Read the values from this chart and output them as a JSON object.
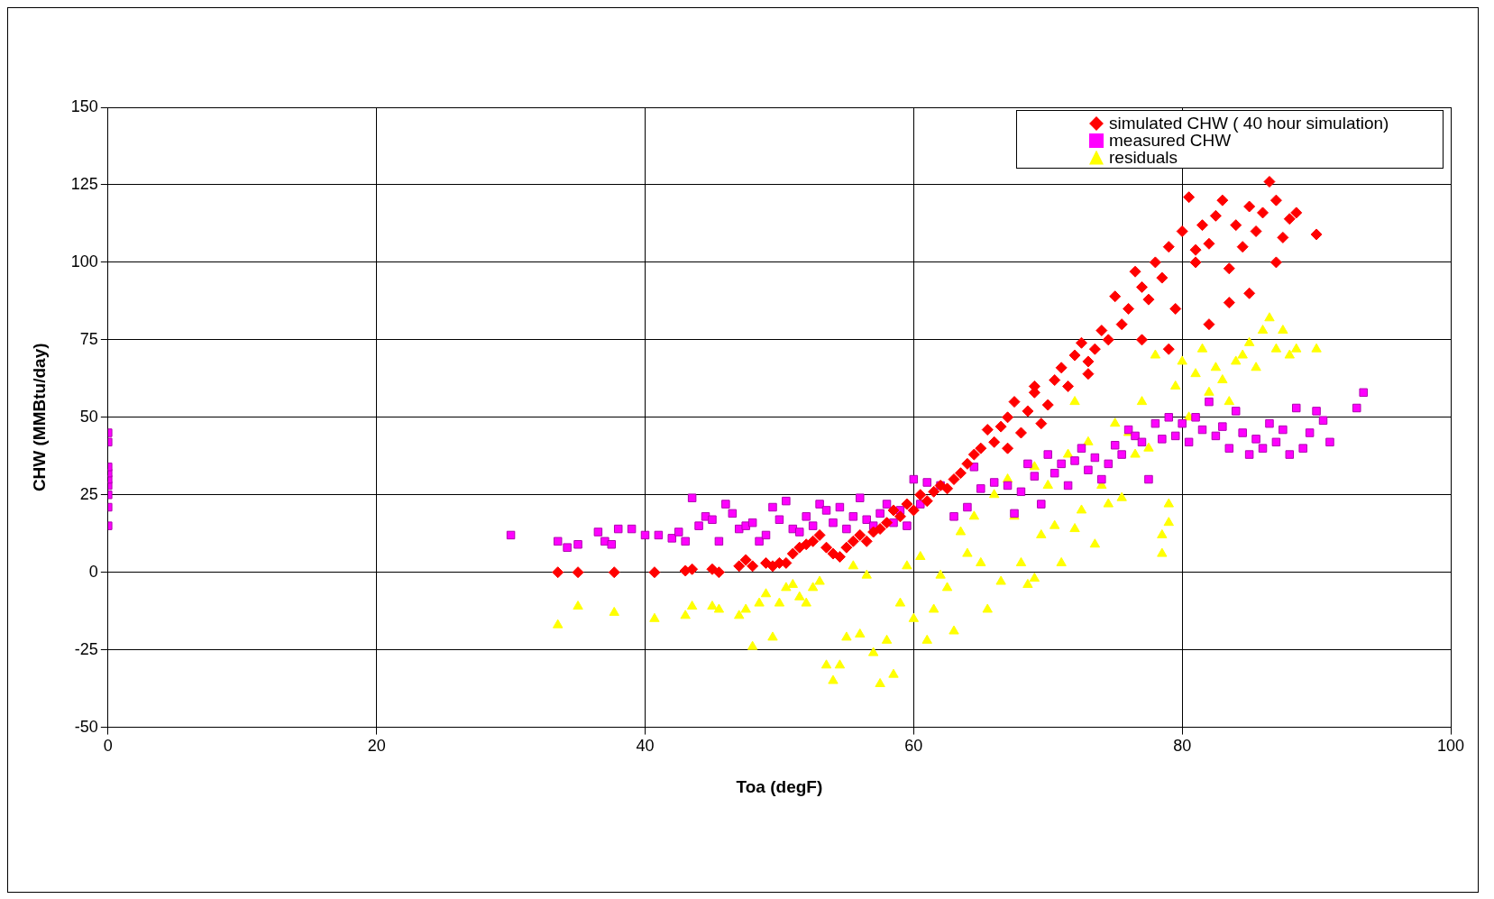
{
  "chart_data": {
    "type": "scatter",
    "xlabel": "Toa (degF)",
    "ylabel": "CHW (MMBtu/day)",
    "xlim": [
      0,
      100
    ],
    "xticks": [
      0,
      20,
      40,
      60,
      80,
      100
    ],
    "ylim": [
      -50,
      150
    ],
    "yticks": [
      -50,
      -25,
      0,
      25,
      50,
      75,
      100,
      125,
      150
    ],
    "grid": true,
    "legend": "top right",
    "series": [
      {
        "name": "simulated CHW ( 40 hour simulation)",
        "color": "#ff0000",
        "marker": "diamond",
        "x": [
          33.5,
          35,
          37.7,
          40.7,
          43,
          43.5,
          45,
          45.5,
          47,
          47.5,
          48,
          49,
          49.5,
          50,
          50.5,
          51,
          51.5,
          52,
          52.5,
          53,
          53.5,
          54,
          54.5,
          55,
          55.5,
          56,
          56.5,
          57,
          57.5,
          58,
          58.5,
          59,
          59.5,
          60,
          60.5,
          61,
          61.5,
          62,
          62.5,
          63,
          63.5,
          64,
          64.5,
          65,
          65.5,
          66,
          66.5,
          67,
          67.5,
          68,
          68.5,
          69,
          69.5,
          70,
          70.5,
          71,
          71.5,
          72,
          72.5,
          73,
          73.5,
          74,
          74.5,
          75,
          75.5,
          76,
          76.5,
          77,
          77.5,
          78,
          78.5,
          79,
          79.5,
          80,
          80.5,
          81,
          81.5,
          82,
          82.5,
          83,
          83.5,
          84,
          84.5,
          85,
          85.5,
          86,
          86.5,
          87,
          87.5,
          88,
          88.5,
          90,
          81,
          79,
          82,
          83.5,
          77,
          73,
          69,
          67,
          85,
          87
        ],
        "values": [
          0,
          0,
          0,
          0,
          0.5,
          1,
          1,
          0,
          2,
          4,
          2,
          3,
          2,
          3,
          3,
          6,
          8,
          9,
          10,
          12,
          8,
          6,
          5,
          8,
          10,
          12,
          10,
          13,
          14,
          16,
          20,
          18,
          22,
          20,
          25,
          23,
          26,
          28,
          27,
          30,
          32,
          35,
          38,
          40,
          46,
          42,
          47,
          50,
          55,
          45,
          52,
          58,
          48,
          54,
          62,
          66,
          60,
          70,
          74,
          68,
          72,
          78,
          75,
          89,
          80,
          85,
          97,
          92,
          88,
          100,
          95,
          105,
          85,
          110,
          121,
          104,
          112,
          106,
          115,
          120,
          98,
          112,
          105,
          118,
          110,
          116,
          126,
          120,
          108,
          114,
          116,
          109,
          100,
          72,
          80,
          87,
          75,
          64,
          60,
          40,
          90,
          100
        ]
      },
      {
        "name": "measured CHW",
        "color": "#ff00ff",
        "marker": "square",
        "x": [
          0,
          0,
          0,
          0,
          0,
          0,
          0,
          0,
          0,
          30,
          33.5,
          34.2,
          35,
          36.5,
          37,
          37.5,
          38,
          39,
          40,
          41,
          42,
          42.5,
          43,
          43.5,
          44,
          44.5,
          45,
          45.5,
          46,
          46.5,
          47,
          47.5,
          48,
          48.5,
          49,
          49.5,
          50,
          50.5,
          51,
          51.5,
          52,
          52.5,
          53,
          53.5,
          54,
          54.5,
          55,
          55.5,
          56,
          56.5,
          57,
          57.5,
          58,
          58.5,
          59,
          59.5,
          60,
          60.5,
          61,
          62,
          63,
          64,
          64.5,
          65,
          66,
          67,
          67.5,
          68,
          68.5,
          69,
          69.5,
          70,
          70.5,
          71,
          71.5,
          72,
          72.5,
          73,
          73.5,
          74,
          74.5,
          75,
          75.5,
          76,
          76.5,
          77,
          77.5,
          78,
          78.5,
          79,
          79.5,
          80,
          80.5,
          81,
          81.5,
          82,
          82.5,
          83,
          83.5,
          84,
          84.5,
          85,
          85.5,
          86,
          86.5,
          87,
          87.5,
          88,
          88.5,
          89,
          89.5,
          90,
          90.5,
          91,
          93,
          93.5
        ],
        "values": [
          15,
          21,
          25,
          28,
          30,
          32,
          34,
          42,
          45,
          12,
          10,
          8,
          9,
          13,
          10,
          9,
          14,
          14,
          12,
          12,
          11,
          13,
          10,
          24,
          15,
          18,
          17,
          10,
          22,
          19,
          14,
          15,
          16,
          10,
          12,
          21,
          17,
          23,
          14,
          13,
          18,
          15,
          22,
          20,
          16,
          21,
          14,
          18,
          24,
          17,
          15,
          19,
          22,
          16,
          20,
          15,
          30,
          22,
          29,
          28,
          18,
          21,
          34,
          27,
          29,
          28,
          19,
          26,
          35,
          31,
          22,
          38,
          32,
          35,
          28,
          36,
          40,
          33,
          37,
          30,
          35,
          41,
          38,
          46,
          44,
          42,
          30,
          48,
          43,
          50,
          44,
          48,
          42,
          50,
          46,
          55,
          44,
          47,
          40,
          52,
          45,
          38,
          43,
          40,
          48,
          42,
          46,
          38,
          53,
          40,
          45,
          52,
          49,
          42,
          53,
          58
        ]
      },
      {
        "name": "residuals",
        "color": "#ffff00",
        "marker": "triangle",
        "x": [
          33.5,
          35,
          37.7,
          40.7,
          43,
          43.5,
          45,
          45.5,
          47,
          47.5,
          48,
          48.5,
          49,
          49.5,
          50,
          50.5,
          51,
          51.5,
          52,
          52.5,
          53,
          53.5,
          54,
          54.5,
          55,
          55.5,
          56,
          56.5,
          57,
          57.5,
          58,
          58.5,
          59,
          59.5,
          60,
          60.5,
          61,
          61.5,
          62,
          62.5,
          63,
          63.5,
          64,
          64.5,
          65,
          65.5,
          66,
          66.5,
          67,
          67.5,
          68,
          68.5,
          69,
          69.5,
          70,
          70.5,
          71,
          71.5,
          72,
          72.5,
          73,
          73.5,
          74,
          74.5,
          75,
          75.5,
          76,
          76.5,
          77,
          77.5,
          78,
          78.5,
          79,
          79.5,
          80,
          80.5,
          81,
          81.5,
          82,
          82.5,
          83,
          83.5,
          84,
          84.5,
          85,
          85.5,
          86,
          86.5,
          87,
          87.5,
          88,
          88.5,
          90,
          78.5,
          79,
          72,
          69
        ],
        "values": [
          -17,
          -11,
          -13,
          -15,
          -14,
          -11,
          -11,
          -12,
          -14,
          -12,
          -24,
          -10,
          -7,
          -21,
          -10,
          -5,
          -4,
          -8,
          -10,
          -5,
          -3,
          -30,
          -35,
          -30,
          -21,
          2,
          -20,
          -1,
          -26,
          -36,
          -22,
          -33,
          -10,
          2,
          -15,
          5,
          -22,
          -12,
          -1,
          -5,
          -19,
          13,
          6,
          18,
          3,
          -12,
          25,
          -3,
          30,
          18,
          3,
          -4,
          34,
          12,
          28,
          15,
          3,
          38,
          14,
          20,
          42,
          9,
          28,
          22,
          48,
          24,
          45,
          38,
          55,
          40,
          70,
          6,
          22,
          60,
          68,
          50,
          64,
          72,
          58,
          66,
          62,
          55,
          68,
          70,
          74,
          66,
          78,
          82,
          72,
          78,
          70,
          72,
          72,
          12,
          16,
          55,
          -2
        ]
      }
    ]
  }
}
